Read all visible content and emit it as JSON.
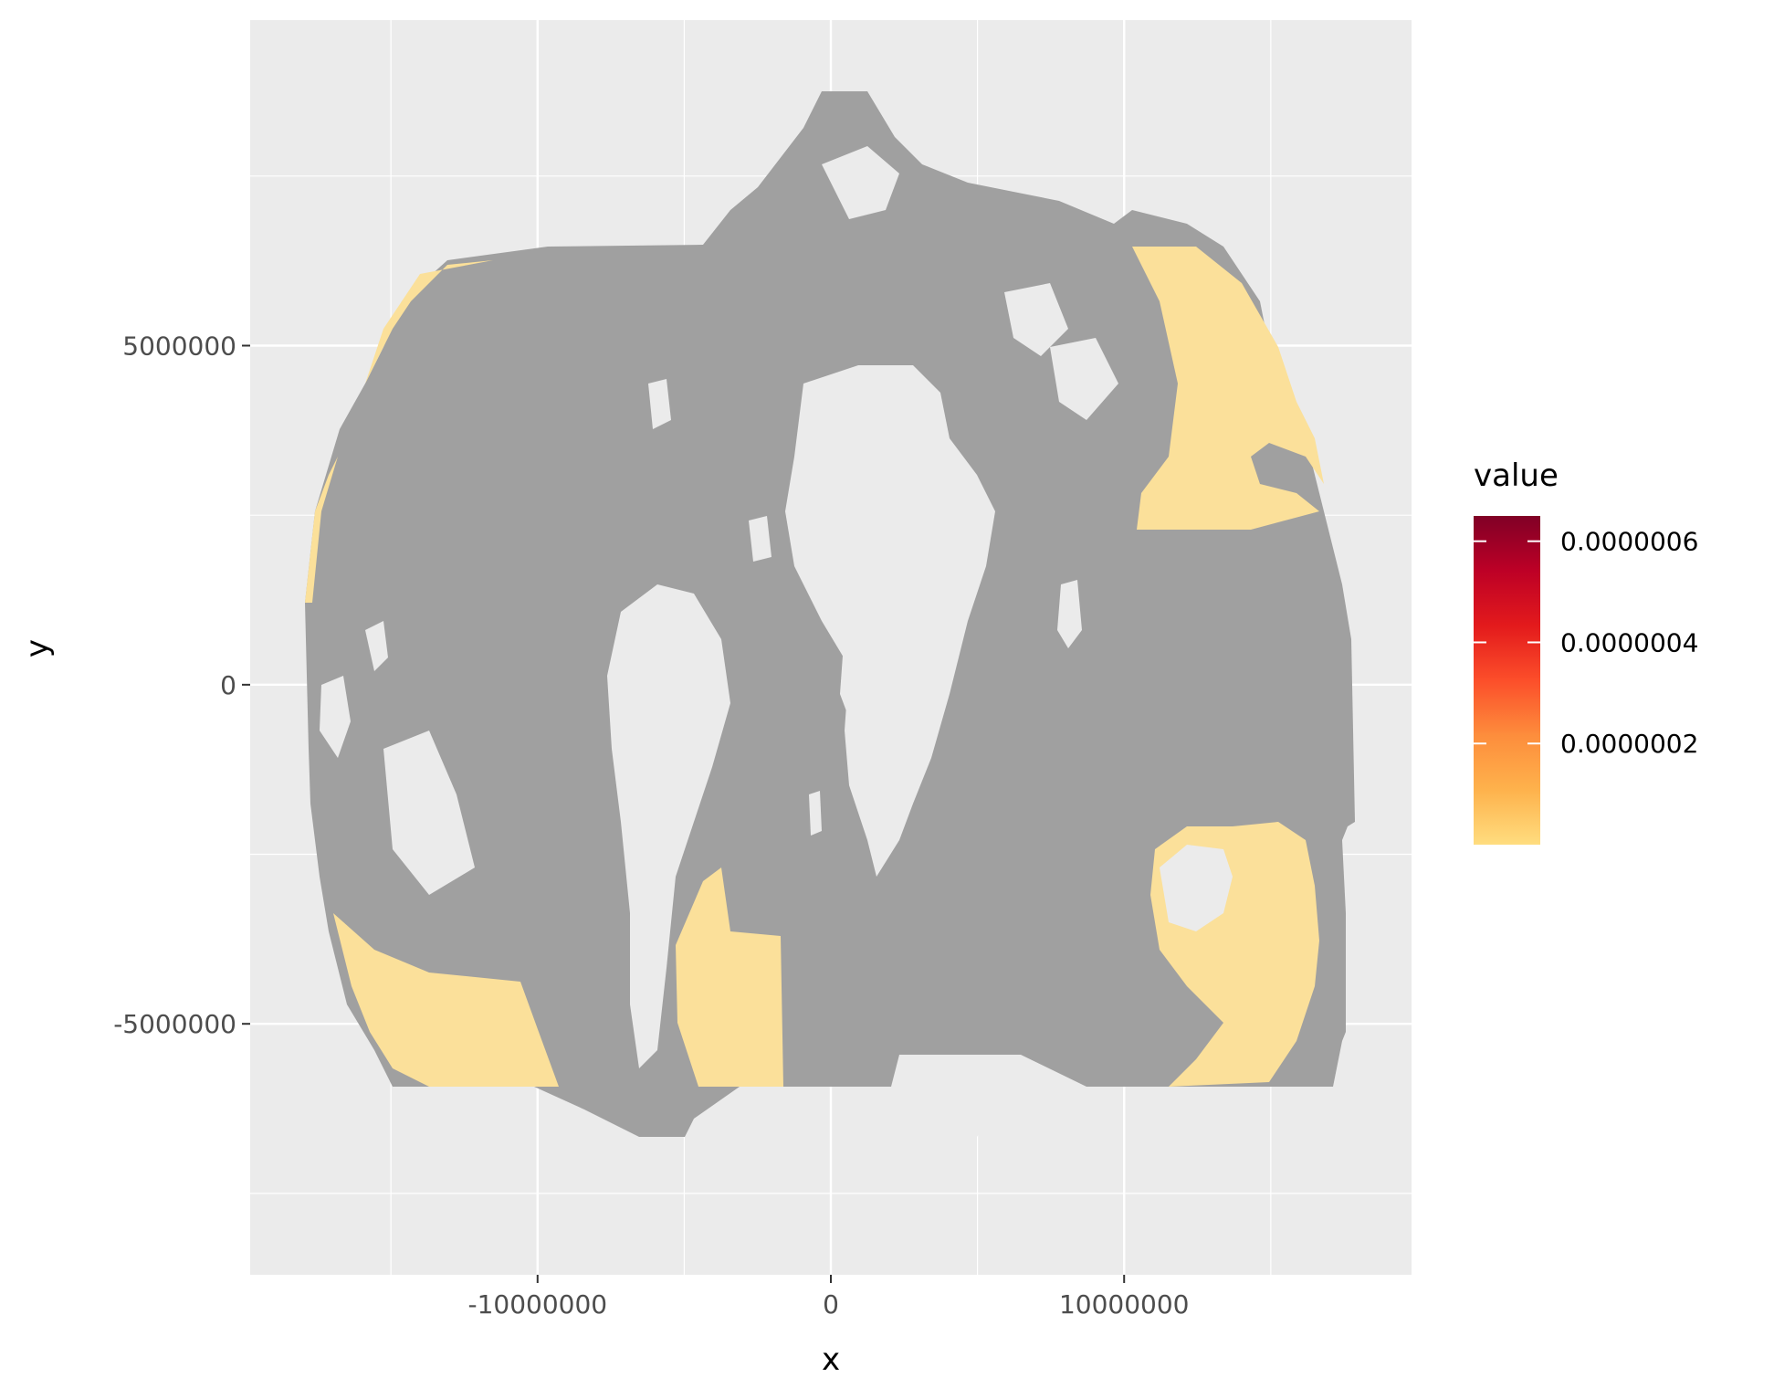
{
  "chart_data": {
    "type": "heatmap",
    "title": "",
    "xlabel": "x",
    "ylabel": "y",
    "xlim": [
      -19800000,
      19800000
    ],
    "ylim": [
      -8700000,
      9800000
    ],
    "x_ticks": [
      {
        "value": -10000000,
        "label": "-10000000"
      },
      {
        "value": 0,
        "label": "0"
      },
      {
        "value": 10000000,
        "label": "10000000"
      }
    ],
    "y_ticks": [
      {
        "value": 5000000,
        "label": "5000000"
      },
      {
        "value": 0,
        "label": "0"
      },
      {
        "value": -5000000,
        "label": "-5000000"
      }
    ],
    "x_minor_breaks": [
      -15000000,
      -5000000,
      5000000,
      15000000
    ],
    "y_minor_breaks": [
      7500000,
      2500000,
      -2500000,
      -7500000
    ],
    "grid": true,
    "legend": {
      "title": "value",
      "position": "right",
      "min": 0,
      "max": 6.5e-07,
      "ticks": [
        {
          "value": 6e-07,
          "label": "0.0000006"
        },
        {
          "value": 4e-07,
          "label": "0.0000004"
        },
        {
          "value": 2e-07,
          "label": "0.0000002"
        }
      ],
      "gradient_stops": [
        "#ffdd7f",
        "#feb24c",
        "#fd8d3c",
        "#fc4e2a",
        "#e31a1c",
        "#bd0026",
        "#800026"
      ]
    },
    "colors": {
      "panel_background": "#ebebeb",
      "grid_major": "#ffffff",
      "ocean_na_cells": "#a0a0a0",
      "low_value_cells": "#fbe09a",
      "land_blank": "#ebebeb"
    }
  }
}
